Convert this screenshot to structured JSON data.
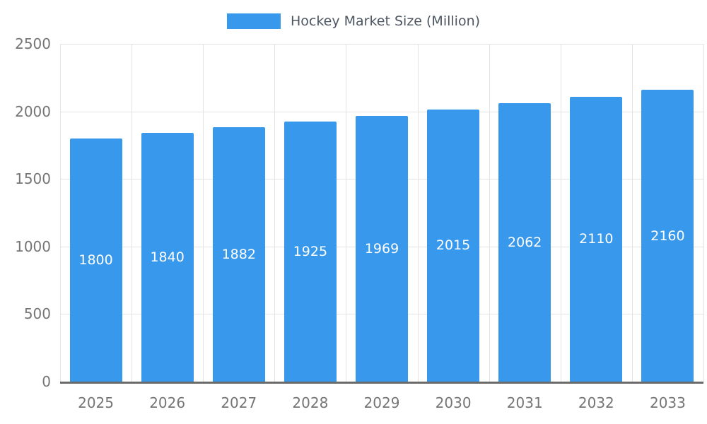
{
  "chart_data": {
    "type": "bar",
    "title": "Hockey Market Size (Million)",
    "categories": [
      "2025",
      "2026",
      "2027",
      "2028",
      "2029",
      "2030",
      "2031",
      "2032",
      "2033"
    ],
    "values": [
      1800,
      1840,
      1882,
      1925,
      1969,
      2015,
      2062,
      2110,
      2160
    ],
    "series": [
      {
        "name": "Hockey Market Size (Million)",
        "values": [
          1800,
          1840,
          1882,
          1925,
          1969,
          2015,
          2062,
          2110,
          2160
        ]
      }
    ],
    "xlabel": "",
    "ylabel": "",
    "ylim": [
      0,
      2500
    ],
    "y_ticks": [
      0,
      500,
      1000,
      1500,
      2000,
      2500
    ],
    "grid": true,
    "legend_position": "top",
    "bar_color": "#3898ec",
    "bar_label_color": "#ffffff",
    "axis_label_color": "#757575",
    "legend_text_color": "#4d5663",
    "gridline_color": "#e3e3e3",
    "axis_line_color": "#6b6b6b"
  }
}
